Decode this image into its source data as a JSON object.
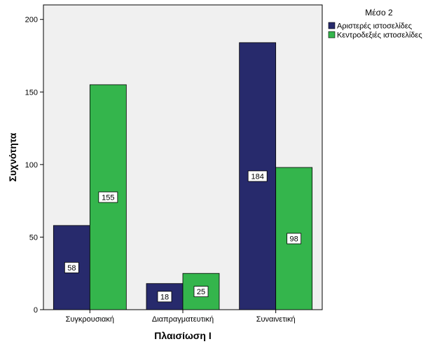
{
  "chart_data": {
    "type": "bar",
    "title": "",
    "xlabel": "Πλαισίωση Ι",
    "ylabel": "Συχνότητα",
    "categories": [
      "Συγκρουσιακή",
      "Διαπραγματευτική",
      "Συναινετική"
    ],
    "series": [
      {
        "name": "Αριστερές ιστοσελίδες",
        "values": [
          58,
          18,
          184
        ],
        "color": "#272A6C"
      },
      {
        "name": "Κεντροδεξιές ιστοσελίδες",
        "values": [
          155,
          25,
          98
        ],
        "color": "#34B54C"
      }
    ],
    "ylim": [
      0,
      210
    ],
    "yticks": [
      0,
      50,
      100,
      150,
      200
    ],
    "legend_title": "Μέσο 2",
    "legend_position": "top-right",
    "grid": false,
    "plot_background": "#F0F0F0"
  }
}
